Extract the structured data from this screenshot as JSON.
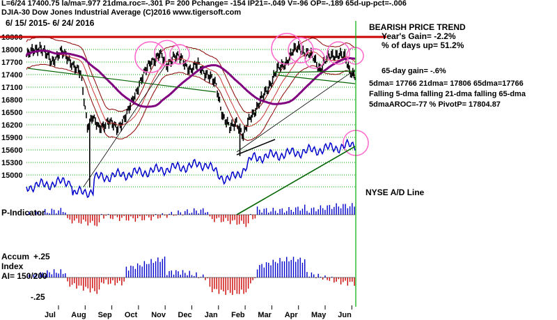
{
  "header": {
    "line1": "L=6/24  17400.75  la/ma=.977 21dma.roc=-.301 P=  200 Pchange= -154 IP21=-.049 V=-96 OP=-.189 65d-up-pct=-.006",
    "line2": "DJIA-30  Dow Jones Industrial Average  (C)2016 www.tigersoft.com",
    "line3": "6/ 15/ 2015- 6/ 24/ 2016"
  },
  "notes": {
    "trend": "BEARISH PRICE TREND",
    "year_gain": "Year's Gain= -2.2%",
    "days_up": "% of days up= 51.2%",
    "gain65": "65-day gain= -.6%",
    "ma_values": "5dma= 17766 21dma= 17806 65dma=17766",
    "falling": "Falling 5-dma falling 21-dma falling 65-dma",
    "aroc": "5dmaAROC=-77 %  PivotP= 17804.87",
    "ad_line": "NYSE A/D Line"
  },
  "panel_labels": {
    "p_indicator": "P-Indicator",
    "accum1": "Accum",
    "accum2": "Index",
    "ai": "AI= 150/200",
    "plus25": "+.25",
    "minus25": "-.25"
  },
  "colors": {
    "price_bars": "#000000",
    "resistance": "#cc0000",
    "band": "#8b0000",
    "ma65": "#800080",
    "ma_short": "#cc3333",
    "ad_line": "#0000cc",
    "trend_green": "#006400",
    "grid_green": "#00aa00",
    "highlight": "#ff66cc",
    "pos_hist": "#0000cc",
    "neg_hist": "#cc0000"
  },
  "chart_data": {
    "type": "ohlc",
    "title": "DJIA-30 Dow Jones Industrial Average",
    "x_range": [
      "6/15/2015",
      "6/24/2016"
    ],
    "x_tick_labels": [
      "Jul",
      "Aug",
      "Sep",
      "Oct",
      "Nov",
      "Dec",
      "Jan",
      "Feb",
      "Mar",
      "Apr",
      "May",
      "Jun"
    ],
    "y_tick_labels": [
      "18300",
      "18000",
      "17700",
      "17400",
      "17100",
      "16800",
      "16500",
      "16200",
      "15900",
      "15600",
      "15300",
      "15000"
    ],
    "ylim": [
      14700,
      18450
    ],
    "resistance_level": 18300,
    "close_series": [
      {
        "month": "Jun-15",
        "close": 17850
      },
      {
        "month": "Jul",
        "close": 17900
      },
      {
        "month": "Aug-early",
        "close": 17550
      },
      {
        "month": "Aug-low",
        "close": 15900
      },
      {
        "month": "Sep",
        "close": 16300
      },
      {
        "month": "Oct",
        "close": 17600
      },
      {
        "month": "Nov",
        "close": 17800
      },
      {
        "month": "Dec",
        "close": 17500
      },
      {
        "month": "Jan",
        "close": 16000
      },
      {
        "month": "Feb-low",
        "close": 15700
      },
      {
        "month": "Mar",
        "close": 17300
      },
      {
        "month": "Apr",
        "close": 18000
      },
      {
        "month": "May",
        "close": 17700
      },
      {
        "month": "Jun-24",
        "close": 17400
      }
    ],
    "ad_line_note": "NYSE A/D Line rising into June 2016",
    "p_indicator_note": "P= 200",
    "accum_index_range": [
      -0.25,
      0.25
    ],
    "accum_index_last": "AI= 150/200"
  }
}
